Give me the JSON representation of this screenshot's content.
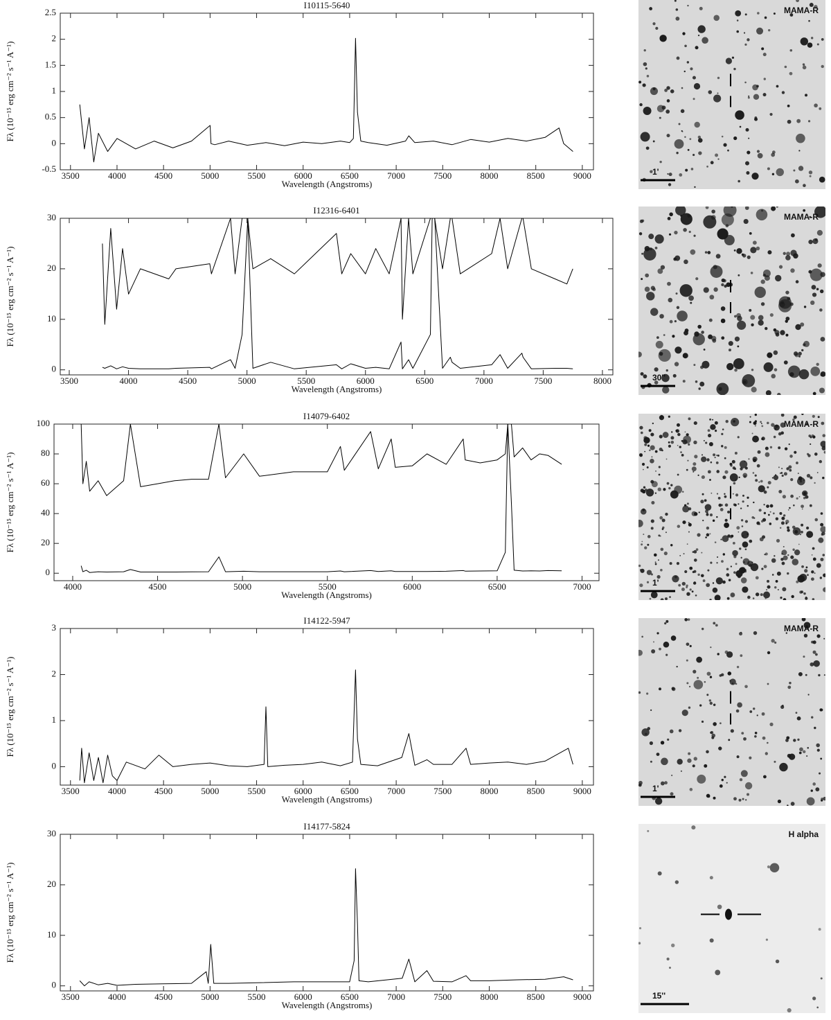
{
  "chart_data": [
    {
      "type": "line",
      "title": "I10115-5640",
      "xlabel": "Wavelength (Angstroms)",
      "ylabel": "Fλ (10⁻¹⁵ erg cm⁻² s⁻¹ A⁻¹)",
      "xlim": [
        3390,
        9120
      ],
      "xticks": [
        3500,
        4000,
        4500,
        5000,
        5500,
        6000,
        6500,
        7000,
        7500,
        8000,
        8500,
        9000
      ],
      "ylim": [
        -0.5,
        2.5
      ],
      "yticks": [
        -0.5,
        0,
        0.5,
        1,
        1.5,
        2,
        2.5
      ],
      "x": [
        3600,
        3650,
        3700,
        3750,
        3800,
        3900,
        4000,
        4200,
        4400,
        4600,
        4800,
        5000,
        5010,
        5050,
        5200,
        5400,
        5600,
        5800,
        6000,
        6200,
        6400,
        6500,
        6540,
        6563,
        6584,
        6620,
        6700,
        6900,
        7100,
        7135,
        7200,
        7400,
        7600,
        7800,
        8000,
        8200,
        8400,
        8600,
        8750,
        8800,
        8900
      ],
      "series": [
        {
          "color": "#000000",
          "values": [
            0.75,
            -0.1,
            0.5,
            -0.35,
            0.2,
            -0.15,
            0.1,
            -0.1,
            0.05,
            -0.08,
            0.05,
            0.35,
            0.0,
            -0.02,
            0.05,
            -0.03,
            0.02,
            -0.04,
            0.03,
            0.0,
            0.05,
            0.02,
            0.1,
            2.02,
            0.6,
            0.05,
            0.02,
            -0.03,
            0.05,
            0.15,
            0.02,
            0.05,
            -0.02,
            0.08,
            0.03,
            0.1,
            0.05,
            0.12,
            0.3,
            0.0,
            -0.15
          ]
        }
      ]
    },
    {
      "type": "line",
      "title": "I12316-6401",
      "xlabel": "Wavelength (Angstroms)",
      "ylabel": "Fλ (10⁻¹⁵ erg cm⁻² s⁻¹ A⁻¹)",
      "xlim": [
        3424,
        8088
      ],
      "xticks": [
        3500,
        4000,
        4500,
        5000,
        5500,
        6000,
        6500,
        7000,
        7500,
        8000
      ],
      "ylim": [
        -1,
        30
      ],
      "yticks": [
        0,
        10,
        20,
        30
      ],
      "x": [
        3780,
        3800,
        3850,
        3900,
        3950,
        4000,
        4100,
        4340,
        4400,
        4686,
        4700,
        4861,
        4900,
        4959,
        5007,
        5050,
        5200,
        5400,
        5755,
        5800,
        5876,
        6000,
        6087,
        6200,
        6300,
        6312,
        6364,
        6400,
        6548,
        6563,
        6584,
        6650,
        6716,
        6731,
        6800,
        7065,
        7136,
        7200,
        7320,
        7330,
        7400,
        7600,
        7700,
        7750
      ],
      "series": [
        {
          "color": "#000000",
          "values": [
            25,
            9,
            28,
            12,
            24,
            15,
            20,
            18,
            20,
            21,
            19,
            30,
            19,
            30,
            30,
            20,
            22,
            19,
            27,
            19,
            23,
            19,
            24,
            19,
            30,
            10,
            30,
            19,
            30,
            30,
            30,
            20,
            30,
            30,
            19,
            23,
            30,
            20,
            30,
            30,
            20,
            18,
            17,
            20
          ]
        },
        {
          "color": "#000000",
          "values": [
            0.5,
            0.3,
            0.8,
            0.2,
            0.6,
            0.3,
            0.2,
            0.2,
            0.3,
            0.5,
            0.2,
            2,
            0.3,
            7,
            30,
            0.3,
            1.5,
            0.2,
            1,
            0.2,
            1.2,
            0.3,
            0.5,
            0.2,
            5.5,
            0.2,
            2,
            0.3,
            7,
            30,
            30,
            0.3,
            2.5,
            1.5,
            0.3,
            1,
            3,
            0.3,
            3.3,
            2.5,
            0.2,
            0.3,
            0.3,
            0.2
          ]
        }
      ]
    },
    {
      "type": "line",
      "title": "I14079-6402",
      "xlabel": "Wavelength (Angstroms)",
      "ylabel": "Fλ (10⁻¹⁵ erg cm⁻² s⁻¹ A⁻¹)",
      "xlim": [
        3890,
        7100
      ],
      "xticks": [
        4000,
        4500,
        5000,
        5500,
        6000,
        6500,
        7000
      ],
      "ylim": [
        -5,
        100
      ],
      "yticks": [
        0,
        20,
        40,
        60,
        80,
        100
      ],
      "x": [
        4050,
        4060,
        4080,
        4100,
        4150,
        4200,
        4300,
        4340,
        4400,
        4500,
        4600,
        4700,
        4800,
        4861,
        4900,
        5007,
        5100,
        5300,
        5500,
        5577,
        5600,
        5755,
        5800,
        5876,
        5900,
        6000,
        6087,
        6200,
        6300,
        6312,
        6400,
        6500,
        6548,
        6563,
        6584,
        6600,
        6650,
        6700,
        6750,
        6800,
        6880
      ],
      "series": [
        {
          "color": "#000000",
          "values": [
            100,
            60,
            75,
            55,
            62,
            52,
            62,
            100,
            58,
            60,
            62,
            63,
            63,
            100,
            64,
            80,
            65,
            68,
            68,
            85,
            69,
            95,
            70,
            90,
            71,
            72,
            80,
            73,
            90,
            76,
            74,
            76,
            80,
            100,
            100,
            78,
            84,
            76,
            80,
            79,
            73
          ]
        },
        {
          "color": "#000000",
          "values": [
            5,
            1,
            2,
            0.5,
            1,
            0.8,
            1,
            2.5,
            0.8,
            0.8,
            0.8,
            0.9,
            1,
            11,
            1,
            1.3,
            1,
            1,
            1,
            1.5,
            1,
            1.8,
            1.2,
            1.6,
            1.2,
            1.2,
            1.2,
            1.3,
            1.8,
            1.4,
            1.5,
            1.6,
            14,
            100,
            47,
            2,
            1.5,
            1.6,
            1.5,
            1.8,
            1.6
          ]
        }
      ]
    },
    {
      "type": "line",
      "title": "I14122-5947",
      "xlabel": "Wavelength (Angstroms)",
      "ylabel": "Fλ (10⁻¹⁵ erg cm⁻² s⁻¹ A⁻¹)",
      "xlim": [
        3390,
        9120
      ],
      "xticks": [
        3500,
        4000,
        4500,
        5000,
        5500,
        6000,
        6500,
        7000,
        7500,
        8000,
        8500,
        9000
      ],
      "ylim": [
        -0.4,
        3
      ],
      "yticks": [
        0,
        1,
        2,
        3
      ],
      "x": [
        3600,
        3620,
        3650,
        3700,
        3750,
        3800,
        3850,
        3900,
        3950,
        4000,
        4100,
        4300,
        4450,
        4600,
        4800,
        5000,
        5200,
        5400,
        5580,
        5600,
        5620,
        5800,
        6000,
        6200,
        6400,
        6530,
        6563,
        6584,
        6620,
        6800,
        7060,
        7136,
        7200,
        7330,
        7400,
        7600,
        7751,
        7800,
        8000,
        8200,
        8400,
        8600,
        8850,
        8900
      ],
      "series": [
        {
          "color": "#000000",
          "values": [
            -0.3,
            0.4,
            -0.35,
            0.3,
            -0.3,
            0.2,
            -0.35,
            0.25,
            -0.2,
            -0.3,
            0.1,
            -0.05,
            0.25,
            0.0,
            0.05,
            0.08,
            0.02,
            0.0,
            0.05,
            1.3,
            0.0,
            0.03,
            0.05,
            0.1,
            0.02,
            0.1,
            2.1,
            0.6,
            0.05,
            0.02,
            0.2,
            0.72,
            0.03,
            0.15,
            0.05,
            0.05,
            0.4,
            0.05,
            0.08,
            0.1,
            0.05,
            0.12,
            0.4,
            0.05
          ]
        }
      ]
    },
    {
      "type": "line",
      "title": "I14177-5824",
      "xlabel": "Wavelength (Angstroms)",
      "ylabel": "Fλ (10⁻¹⁵ erg cm⁻² s⁻¹ A⁻¹)",
      "xlim": [
        3390,
        9120
      ],
      "xticks": [
        3500,
        4000,
        4500,
        5000,
        5500,
        6000,
        6500,
        7000,
        7500,
        8000,
        8500,
        9000
      ],
      "ylim": [
        -1,
        30
      ],
      "yticks": [
        0,
        10,
        20,
        30
      ],
      "x": [
        3600,
        3650,
        3700,
        3800,
        3900,
        4000,
        4200,
        4500,
        4800,
        4959,
        4980,
        5007,
        5040,
        5200,
        5500,
        5900,
        6300,
        6500,
        6548,
        6563,
        6584,
        6600,
        6700,
        7065,
        7136,
        7200,
        7330,
        7400,
        7600,
        7751,
        7800,
        8000,
        8300,
        8600,
        8800,
        8900
      ],
      "series": [
        {
          "color": "#000000",
          "values": [
            1,
            0,
            0.8,
            0.2,
            0.5,
            0.1,
            0.3,
            0.4,
            0.5,
            2.8,
            0.5,
            8.2,
            0.5,
            0.5,
            0.6,
            0.8,
            0.8,
            0.8,
            5,
            23.2,
            12.3,
            1,
            0.8,
            1.5,
            5.3,
            0.8,
            3,
            0.9,
            0.8,
            2,
            1,
            1,
            1.2,
            1.3,
            1.8,
            1.2
          ]
        }
      ]
    }
  ],
  "finder_charts": [
    {
      "band": "MAMA-R",
      "scale": "1'"
    },
    {
      "band": "MAMA-R",
      "scale": "30''"
    },
    {
      "band": "MAMA-R",
      "scale": "1'"
    },
    {
      "band": "MAMA-R",
      "scale": "1'"
    },
    {
      "band": "H alpha",
      "scale": "15''"
    }
  ]
}
